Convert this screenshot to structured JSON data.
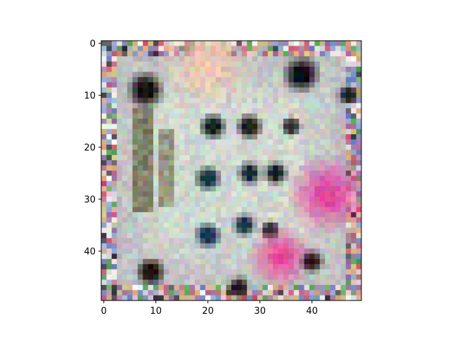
{
  "chart_data": {
    "type": "heatmap",
    "title": "",
    "xlabel": "",
    "ylabel": "",
    "rows": 50,
    "cols": 50,
    "xlim": [
      -0.5,
      49.5
    ],
    "ylim": [
      49.5,
      -0.5
    ],
    "y_axis_inverted": true,
    "grid": false,
    "legend": "none",
    "x_ticks": [
      0,
      10,
      20,
      30,
      40
    ],
    "x_tick_labels": [
      "0",
      "10",
      "20",
      "30",
      "40"
    ],
    "y_ticks": [
      0,
      10,
      20,
      30,
      40
    ],
    "y_tick_labels": [
      "0",
      "10",
      "20",
      "30",
      "40"
    ],
    "image_description_colors": {
      "background_grey": "#b8b8bc",
      "border_noise": "#d8c8c8",
      "dark_spot": "#101018",
      "magenta_region": "#e040a0",
      "pale_center": "#d0d8d0",
      "olive_stripe": "#6a6848"
    },
    "features": [
      {
        "kind": "frame",
        "r0": 0,
        "r1": 49,
        "c0": 0,
        "c1": 49,
        "color": "#d8c8c8"
      },
      {
        "kind": "blob",
        "row": 4,
        "col": 20,
        "radius": 6,
        "color": "#f0c8b0"
      },
      {
        "kind": "dark",
        "row": 9,
        "col": 8,
        "radius": 2.5,
        "color": "#181010"
      },
      {
        "kind": "dark",
        "row": 6,
        "col": 38,
        "radius": 2.5,
        "color": "#101018"
      },
      {
        "kind": "dark",
        "row": 10,
        "col": 47,
        "radius": 1.5,
        "color": "#181828"
      },
      {
        "kind": "stripe",
        "r0": 13,
        "r1": 32,
        "c0": 6,
        "c1": 9,
        "color": "#6a6848"
      },
      {
        "kind": "stripe",
        "r0": 17,
        "r1": 31,
        "c0": 11,
        "c1": 13,
        "color": "#8a8868"
      },
      {
        "kind": "dark",
        "row": 16,
        "col": 21,
        "radius": 1.8,
        "color": "#182018"
      },
      {
        "kind": "dark",
        "row": 16,
        "col": 28,
        "radius": 1.8,
        "color": "#182018"
      },
      {
        "kind": "dark",
        "row": 16,
        "col": 36,
        "radius": 1.4,
        "color": "#202820"
      },
      {
        "kind": "dark",
        "row": 26,
        "col": 20,
        "radius": 1.8,
        "color": "#183048"
      },
      {
        "kind": "dark",
        "row": 25,
        "col": 28,
        "radius": 1.6,
        "color": "#182838"
      },
      {
        "kind": "dark",
        "row": 25,
        "col": 33,
        "radius": 1.6,
        "color": "#101820"
      },
      {
        "kind": "dark",
        "row": 35,
        "col": 27,
        "radius": 1.6,
        "color": "#183048"
      },
      {
        "kind": "dark",
        "row": 36,
        "col": 32,
        "radius": 1.4,
        "color": "#101018"
      },
      {
        "kind": "dark",
        "row": 37,
        "col": 20,
        "radius": 1.8,
        "color": "#183050"
      },
      {
        "kind": "blob",
        "row": 29,
        "col": 43,
        "radius": 5,
        "color": "#e040a0"
      },
      {
        "kind": "blob",
        "row": 41,
        "col": 34,
        "radius": 4,
        "color": "#e84898"
      },
      {
        "kind": "dark",
        "row": 42,
        "col": 40,
        "radius": 1.6,
        "color": "#301018"
      },
      {
        "kind": "dark",
        "row": 44,
        "col": 9,
        "radius": 2,
        "color": "#181008"
      },
      {
        "kind": "dark",
        "row": 47,
        "col": 26,
        "radius": 1.5,
        "color": "#201018"
      }
    ]
  }
}
